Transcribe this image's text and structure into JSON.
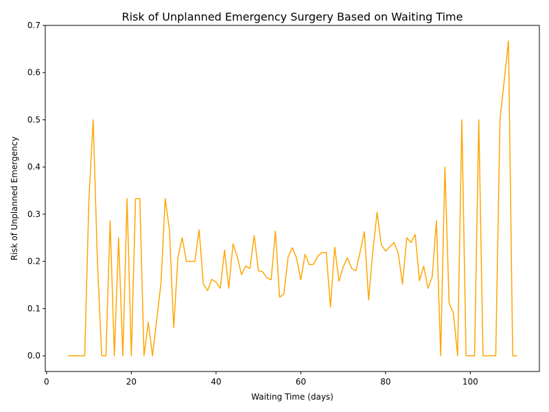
{
  "chart_data": {
    "type": "line",
    "title": "Risk of Unplanned Emergency Surgery Based on Waiting Time",
    "xlabel": "Waiting Time (days)",
    "ylabel": "Risk of Unplanned Emergency",
    "xlim": [
      -0.3,
      116.3
    ],
    "ylim": [
      -0.0333,
      0.7
    ],
    "xticks": [
      0,
      20,
      40,
      60,
      80,
      100
    ],
    "yticks": [
      0.0,
      0.1,
      0.2,
      0.3,
      0.4,
      0.5,
      0.6,
      0.7
    ],
    "xtick_labels": [
      "0",
      "20",
      "40",
      "60",
      "80",
      "100"
    ],
    "ytick_labels": [
      "0.0",
      "0.1",
      "0.2",
      "0.3",
      "0.4",
      "0.5",
      "0.6",
      "0.7"
    ],
    "grid": false,
    "color": "#ffa500",
    "series": [
      {
        "x": [
          5,
          6,
          7,
          8,
          9,
          10,
          11,
          12,
          13,
          14,
          15,
          16,
          17,
          18,
          19,
          20,
          21,
          22,
          23,
          24,
          25,
          26,
          27,
          28,
          29,
          30,
          31,
          32,
          33,
          34,
          35,
          36,
          37,
          38,
          39,
          40,
          41,
          42,
          43,
          44,
          45,
          46,
          47,
          48,
          49,
          50,
          51,
          52,
          53,
          54,
          55,
          56,
          57,
          58,
          59,
          60,
          61,
          62,
          63,
          64,
          65,
          66,
          67,
          68,
          69,
          70,
          71,
          72,
          73,
          74,
          75,
          76,
          77,
          78,
          79,
          80,
          81,
          82,
          83,
          84,
          85,
          86,
          87,
          88,
          89,
          90,
          91,
          92,
          93,
          94,
          95,
          96,
          97,
          98,
          99,
          100,
          101,
          102,
          103,
          104,
          105,
          106,
          107,
          108,
          109,
          110,
          111
        ],
        "y": [
          0,
          0,
          0,
          0,
          0,
          0.333,
          0.5,
          0.2,
          0,
          0,
          0.286,
          0,
          0.25,
          0,
          0.333,
          0,
          0.333,
          0.333,
          0,
          0.071,
          0,
          0.077,
          0.154,
          0.333,
          0.267,
          0.059,
          0.208,
          0.25,
          0.2,
          0.2,
          0.2,
          0.267,
          0.152,
          0.138,
          0.162,
          0.156,
          0.143,
          0.224,
          0.143,
          0.237,
          0.21,
          0.172,
          0.19,
          0.185,
          0.255,
          0.18,
          0.178,
          0.165,
          0.161,
          0.264,
          0.124,
          0.131,
          0.209,
          0.229,
          0.207,
          0.161,
          0.215,
          0.193,
          0.194,
          0.211,
          0.219,
          0.219,
          0.103,
          0.23,
          0.158,
          0.188,
          0.208,
          0.185,
          0.18,
          0.22,
          0.263,
          0.118,
          0.222,
          0.304,
          0.235,
          0.222,
          0.231,
          0.24,
          0.217,
          0.152,
          0.25,
          0.24,
          0.257,
          0.159,
          0.19,
          0.143,
          0.167,
          0.286,
          0,
          0.4,
          0.111,
          0.091,
          0,
          0.5,
          0,
          0,
          0,
          0.5,
          0,
          0,
          0,
          0,
          0.5,
          0.583,
          0.667,
          0,
          0
        ]
      }
    ]
  }
}
